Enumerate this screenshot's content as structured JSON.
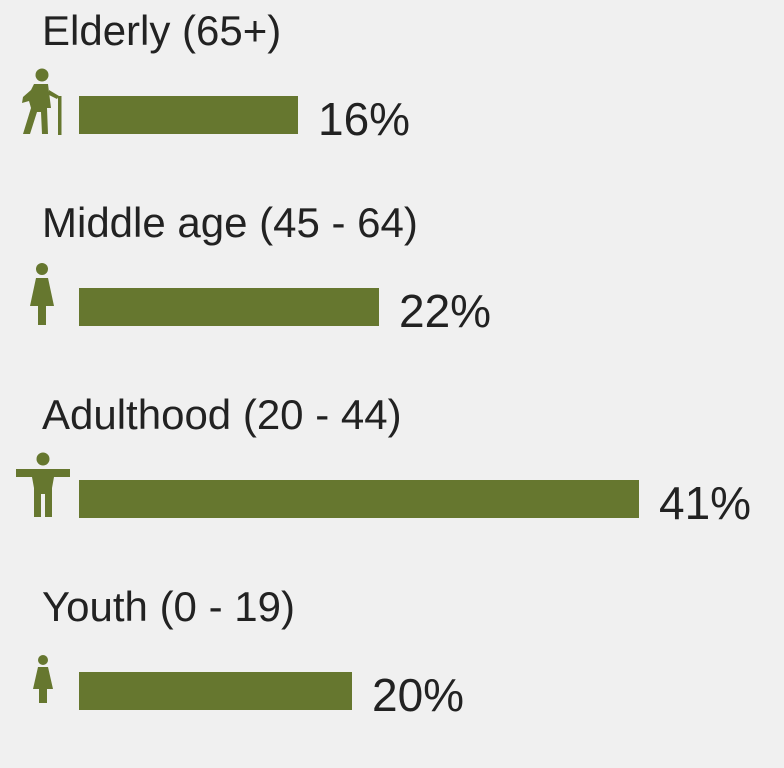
{
  "chart_data": {
    "type": "bar",
    "orientation": "horizontal",
    "categories": [
      "Elderly (65+)",
      "Middle age (45 - 64)",
      "Adulthood (20 - 44)",
      "Youth (0 - 19)"
    ],
    "values": [
      16,
      22,
      41,
      20
    ],
    "value_labels": [
      "16%",
      "22%",
      "41%",
      "20%"
    ],
    "icons": [
      "elderly-person-icon",
      "middle-age-person-icon",
      "adult-person-icon",
      "child-person-icon"
    ],
    "bar_color": "#66772f",
    "background": "#f0f0f0",
    "xlim": [
      0,
      41
    ]
  }
}
